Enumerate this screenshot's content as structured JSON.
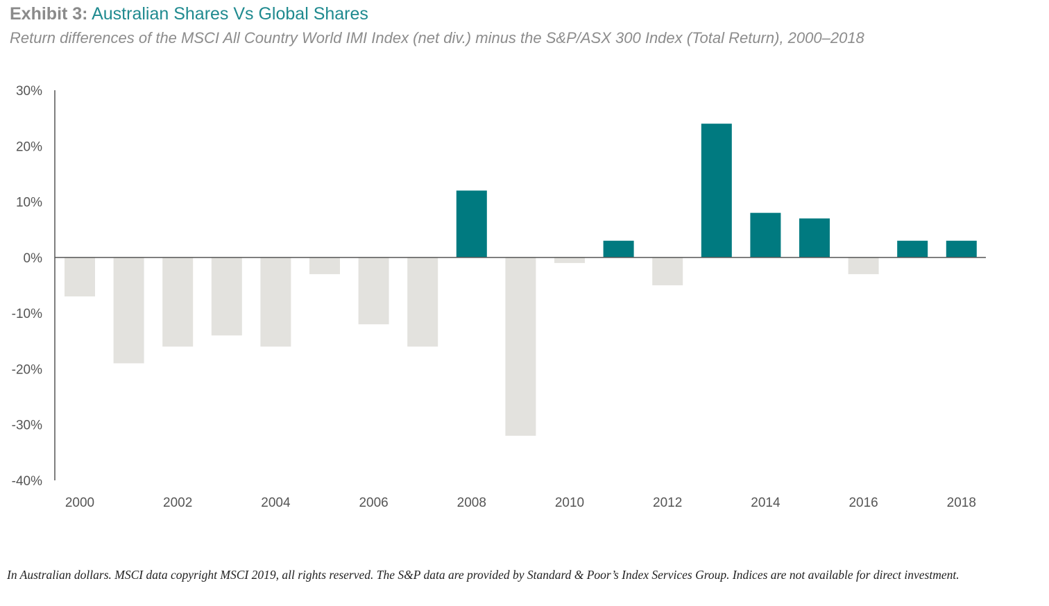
{
  "header": {
    "title_prefix": "Exhibit 3:",
    "title_main": "Australian Shares Vs Global Shares",
    "subtitle": "Return differences of the MSCI All Country World IMI Index (net div.) minus the S&P/ASX 300 Index (Total Return), 2000–2018"
  },
  "footer": {
    "note": "In Australian dollars. MSCI data copyright MSCI 2019, all rights reserved. The S&P data are provided by Standard & Poor’s Index Services Group. Indices are not available for direct investment."
  },
  "colors": {
    "positive": "#007a80",
    "negative": "#e3e2de",
    "axis": "#555555",
    "title_prefix": "#8a8a8a",
    "title_main": "#1f8a8f"
  },
  "chart_data": {
    "type": "bar",
    "title": "Australian Shares Vs Global Shares",
    "subtitle": "Return differences of the MSCI All Country World IMI Index (net div.) minus the S&P/ASX 300 Index (Total Return), 2000–2018",
    "xlabel": "",
    "ylabel": "",
    "unit": "%",
    "categories": [
      "2000",
      "2001",
      "2002",
      "2003",
      "2004",
      "2005",
      "2006",
      "2007",
      "2008",
      "2009",
      "2010",
      "2011",
      "2012",
      "2013",
      "2014",
      "2015",
      "2016",
      "2017",
      "2018"
    ],
    "values": [
      -7,
      -19,
      -16,
      -14,
      -16,
      -3,
      -12,
      -16,
      12,
      -32,
      -1,
      3,
      -5,
      24,
      8,
      7,
      -3,
      3,
      3
    ],
    "ylim": [
      -40,
      30
    ],
    "yticks": [
      30,
      20,
      10,
      0,
      -10,
      -20,
      -30,
      -40
    ],
    "ytick_labels": [
      "30%",
      "20%",
      "10%",
      "0%",
      "-10%",
      "-20%",
      "-30%",
      "-40%"
    ],
    "xtick_labels": [
      "2000",
      "2002",
      "2004",
      "2006",
      "2008",
      "2010",
      "2012",
      "2014",
      "2016",
      "2018"
    ],
    "grid": false,
    "legend": "none",
    "color_rule": "positive values teal, negative values light grey"
  }
}
